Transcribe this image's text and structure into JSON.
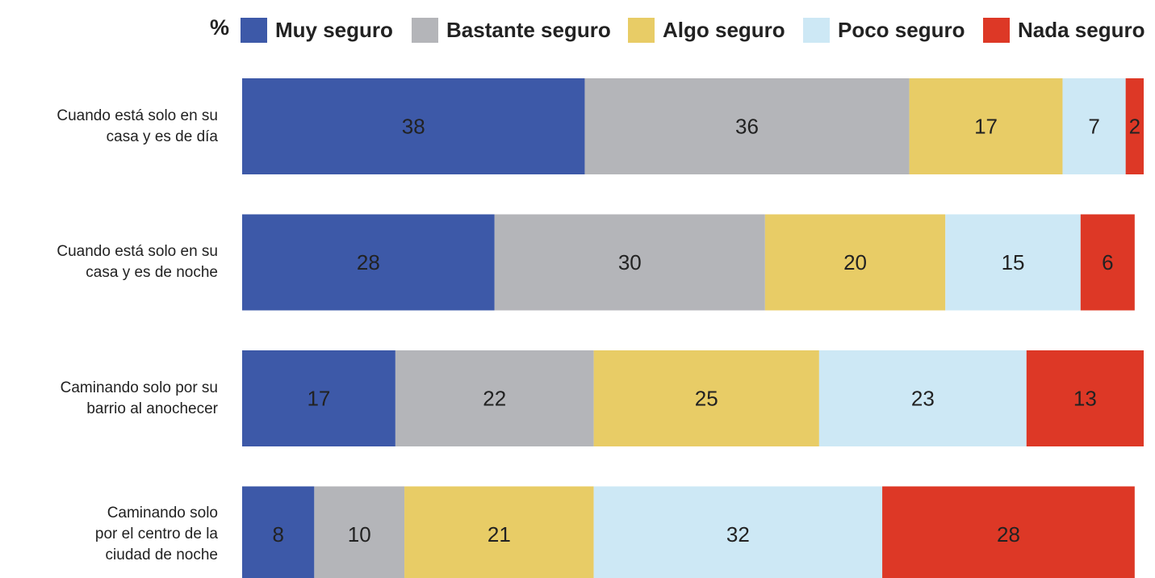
{
  "chart_data": {
    "type": "stacked_bar_horizontal",
    "legend_title": "%",
    "categories": [
      "Cuando está solo en su\ncasa y es de día",
      "Cuando está solo en su\ncasa y es de noche",
      "Caminando solo por su\nbarrio al anochecer",
      "Caminando solo\npor el centro de la\nciudad de noche"
    ],
    "series": [
      {
        "name": "Muy seguro",
        "color": "#3d59a8",
        "values": [
          38,
          28,
          17,
          8
        ]
      },
      {
        "name": "Bastante seguro",
        "color": "#b4b5b9",
        "values": [
          36,
          30,
          22,
          10
        ]
      },
      {
        "name": "Algo seguro",
        "color": "#e8cc66",
        "values": [
          17,
          20,
          25,
          21
        ]
      },
      {
        "name": "Poco seguro",
        "color": "#cde8f5",
        "values": [
          7,
          15,
          23,
          32
        ]
      },
      {
        "name": "Nada seguro",
        "color": "#dd3826",
        "values": [
          2,
          6,
          13,
          28
        ]
      }
    ],
    "xlim": [
      0,
      100
    ],
    "legend": "top"
  }
}
